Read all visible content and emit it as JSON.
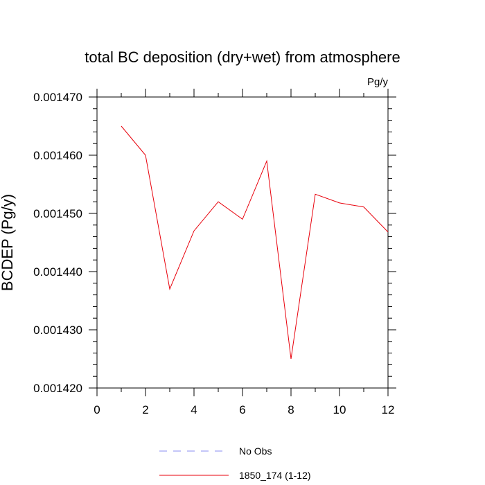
{
  "chart_data": {
    "type": "line",
    "title": "total BC deposition (dry+wet) from atmosphere",
    "units": "Pg/y",
    "ylabel": "BCDEP  (Pg/y)",
    "xlabel": "",
    "xlim": [
      0,
      12
    ],
    "ylim": [
      0.00142,
      0.00147
    ],
    "xticks": [
      0,
      2,
      4,
      6,
      8,
      10,
      12
    ],
    "xtick_labels": [
      "0",
      "2",
      "4",
      "6",
      "8",
      "10",
      "12"
    ],
    "yticks": [
      0.00142,
      0.00143,
      0.00144,
      0.00145,
      0.00146,
      0.00147
    ],
    "ytick_labels": [
      "0.001420",
      "0.001430",
      "0.001440",
      "0.001450",
      "0.001460",
      "0.001470"
    ],
    "grid": false,
    "legend_position": "bottom",
    "series": [
      {
        "name": "1850_174 (1-12)",
        "color": "#e8000b",
        "dash": "solid",
        "x": [
          1,
          2,
          3,
          4,
          5,
          6,
          7,
          8,
          9,
          10,
          11,
          12
        ],
        "values": [
          0.001465,
          0.00146,
          0.001437,
          0.001447,
          0.001452,
          0.001449,
          0.001459,
          0.001425,
          0.0014533,
          0.0014518,
          0.0014511,
          0.0014468
        ]
      }
    ],
    "legend": [
      {
        "label": "No Obs",
        "color": "#8a8cf0",
        "dash": "dashed"
      },
      {
        "label": "1850_174 (1-12)",
        "color": "#e8000b",
        "dash": "solid"
      }
    ]
  }
}
